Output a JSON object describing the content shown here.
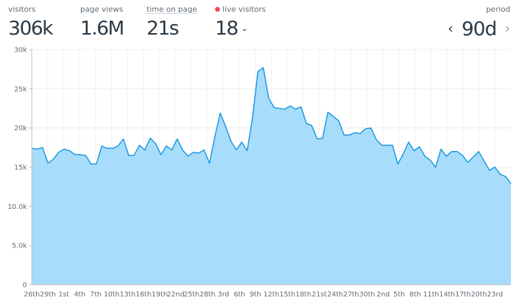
{
  "stats": {
    "visitors": {
      "label": "visitors",
      "value": "306k"
    },
    "page_views": {
      "label": "page views",
      "value": "1.6M"
    },
    "time_on_page": {
      "label": "time on page",
      "value": "21s"
    },
    "live_visitors": {
      "label": "live visitors",
      "value": "18"
    }
  },
  "period": {
    "label": "period",
    "value": "90d"
  },
  "colors": {
    "area_fill": "#a8dcfb",
    "line": "#1e9be0",
    "live_dot": "#f0475b"
  },
  "icons": {
    "prev": "chevron-left-icon",
    "next": "chevron-right-icon",
    "dropdown": "chevron-down-icon"
  },
  "chart_data": {
    "type": "area",
    "grid": true,
    "ylim": [
      0,
      30000
    ],
    "y_ticks": [
      0,
      5000,
      10000,
      15000,
      20000,
      25000,
      30000
    ],
    "y_tick_labels": [
      "0",
      "5.0k",
      "10.0k",
      "15k",
      "20k",
      "25k",
      "30k"
    ],
    "x_tick_labels": [
      "26th",
      "29th",
      "1st",
      "4th",
      "7th",
      "10th",
      "13th",
      "16th",
      "19th",
      "22nd",
      "25th",
      "28th",
      "3rd",
      "6th",
      "9th",
      "12th",
      "15th",
      "18th",
      "21st",
      "24th",
      "27th",
      "30th",
      "2nd",
      "5th",
      "8th",
      "11th",
      "14th",
      "17th",
      "20th",
      "23rd"
    ],
    "values": [
      17400,
      17300,
      17500,
      15500,
      16000,
      16900,
      17300,
      17100,
      16600,
      16600,
      16500,
      15400,
      15400,
      17700,
      17400,
      17400,
      17700,
      18600,
      16500,
      16500,
      17800,
      17200,
      18700,
      18000,
      16600,
      17700,
      17200,
      18600,
      17200,
      16400,
      16900,
      16800,
      17200,
      15500,
      18900,
      21900,
      20200,
      18300,
      17200,
      18200,
      17100,
      21300,
      27200,
      27700,
      23800,
      22600,
      22500,
      22400,
      22800,
      22400,
      22700,
      20600,
      20300,
      18600,
      18700,
      22000,
      21500,
      20900,
      19100,
      19100,
      19400,
      19300,
      19900,
      20000,
      18500,
      17800,
      17800,
      17800,
      15400,
      16700,
      18200,
      17100,
      17600,
      16400,
      15900,
      15000,
      17300,
      16400,
      17000,
      17000,
      16500,
      15600,
      16300,
      17000,
      15800,
      14600,
      15000,
      14100,
      13800,
      12900
    ]
  }
}
